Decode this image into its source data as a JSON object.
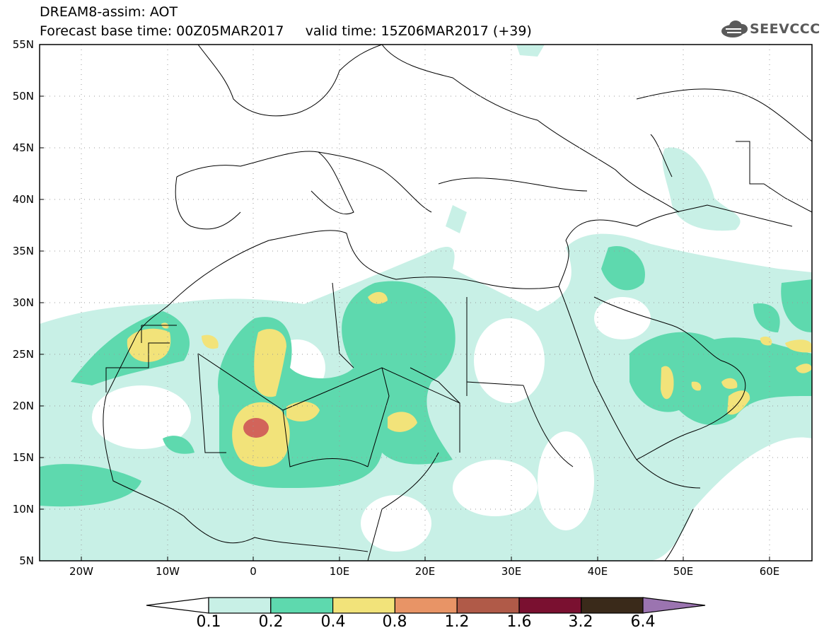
{
  "title_line1": "DREAM8-assim: AOT",
  "title_line2": "Forecast base time: 00Z05MAR2017     valid time: 15Z06MAR2017 (+39)",
  "logo_text": "SEEVCCC",
  "logo_icon": "cloud-icon",
  "y_ticks": [
    "55N",
    "50N",
    "45N",
    "40N",
    "35N",
    "30N",
    "25N",
    "20N",
    "15N",
    "10N",
    "5N"
  ],
  "x_ticks": [
    "20W",
    "10W",
    "0",
    "10E",
    "20E",
    "30E",
    "40E",
    "50E",
    "60E"
  ],
  "colorbar": {
    "tick_labels": [
      "0.1",
      "0.2",
      "0.4",
      "0.8",
      "1.2",
      "1.6",
      "3.2",
      "6.4"
    ],
    "colors": [
      "#ffffff",
      "#c8f0e6",
      "#5ed9ae",
      "#f2e37a",
      "#e89466",
      "#b05a48",
      "#7a1030",
      "#3a2a1a",
      "#9b74b0"
    ]
  },
  "map_colors": {
    "c01": "#c8f0e6",
    "c02": "#5ed9ae",
    "c04": "#f2e37a",
    "c08": "#e89466",
    "c12": "#d2645a"
  }
}
